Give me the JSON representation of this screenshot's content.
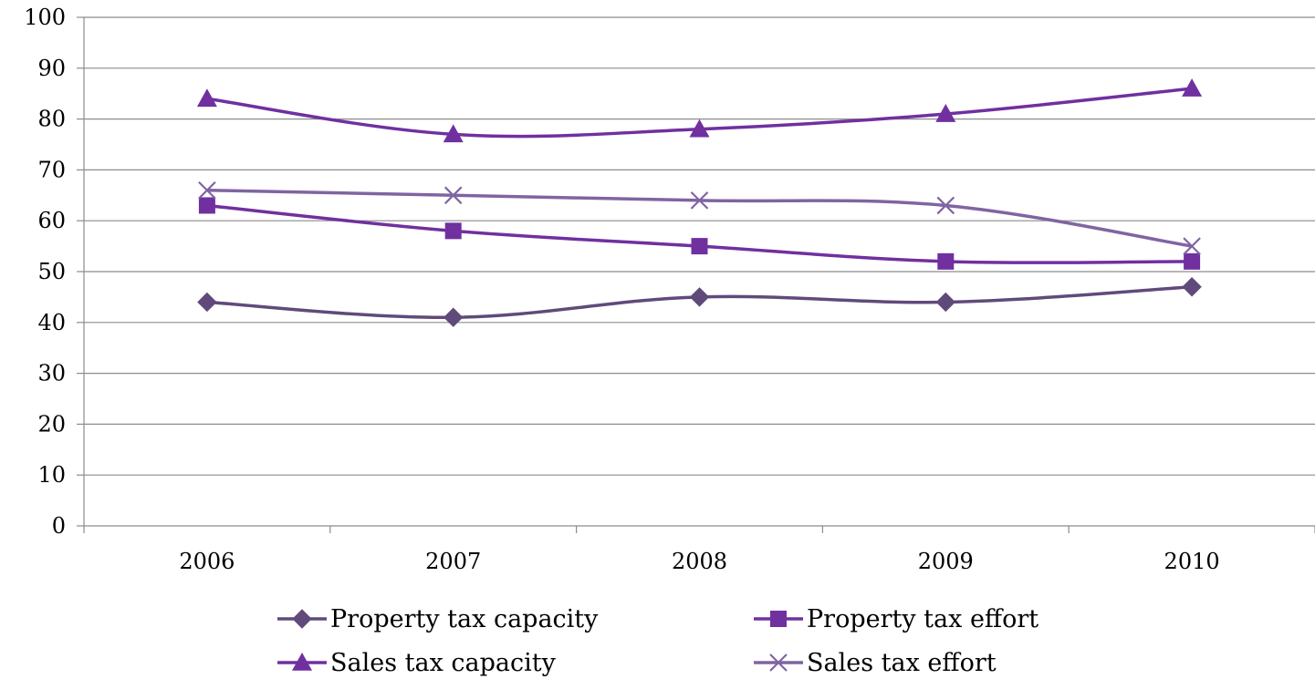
{
  "chart_data": {
    "type": "line",
    "title": "",
    "xlabel": "",
    "ylabel": "",
    "categories": [
      "2006",
      "2007",
      "2008",
      "2009",
      "2010"
    ],
    "ylim": [
      0,
      100
    ],
    "yticks": [
      "0",
      "10",
      "20",
      "30",
      "40",
      "50",
      "60",
      "70",
      "80",
      "90",
      "100"
    ],
    "grid": "horizontal",
    "legend_position": "bottom",
    "series": [
      {
        "name": "Property tax capacity",
        "values": [
          44,
          41,
          45,
          44,
          47
        ],
        "color": "#604a7b",
        "marker": "diamond"
      },
      {
        "name": "Property tax effort",
        "values": [
          63,
          58,
          55,
          52,
          52
        ],
        "color": "#7030a0",
        "marker": "square"
      },
      {
        "name": "Sales tax capacity",
        "values": [
          84,
          77,
          78,
          81,
          86
        ],
        "color": "#7030a0",
        "marker": "triangle"
      },
      {
        "name": "Sales tax effort",
        "values": [
          66,
          65,
          64,
          63,
          55
        ],
        "color": "#8064a2",
        "marker": "x"
      }
    ]
  }
}
